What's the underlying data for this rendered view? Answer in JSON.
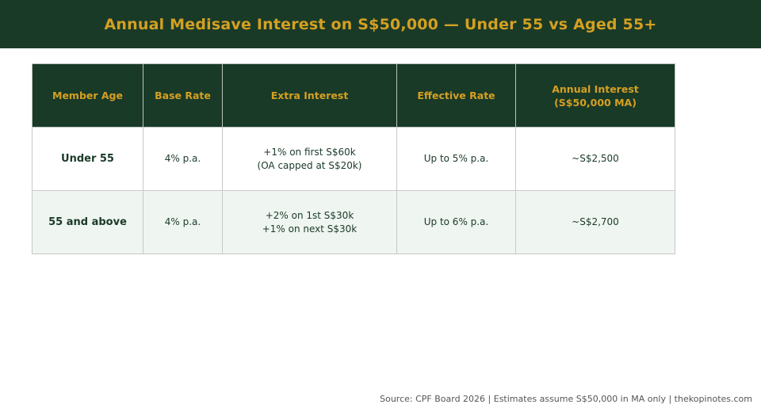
{
  "header": {
    "title": "Annual Medisave Interest on S$50,000 — Under 55 vs Aged 55+"
  },
  "table": {
    "columns": [
      [
        "Member Age"
      ],
      [
        "Base Rate"
      ],
      [
        "Extra Interest"
      ],
      [
        "Effective Rate"
      ],
      [
        "Annual Interest",
        "(S$50,000 MA)"
      ]
    ],
    "rows": [
      {
        "age": "Under 55",
        "base_rate": "4% p.a.",
        "extra_interest": [
          "+1% on first S$60k",
          "(OA capped at S$20k)"
        ],
        "effective_rate": "Up to 5% p.a.",
        "annual_interest": "~S$2,500"
      },
      {
        "age": "55 and above",
        "base_rate": "4% p.a.",
        "extra_interest": [
          "+2% on 1st S$30k",
          "+1% on next S$30k"
        ],
        "effective_rate": "Up to 6% p.a.",
        "annual_interest": "~S$2,700"
      }
    ]
  },
  "footer": {
    "source": "Source: CPF Board 2026 | Estimates assume S$50,000 in MA only | thekopinotes.com"
  },
  "colors": {
    "header_bg": "#1a3a28",
    "accent_gold": "#d4a021",
    "alt_row_bg": "#eff5f0"
  }
}
